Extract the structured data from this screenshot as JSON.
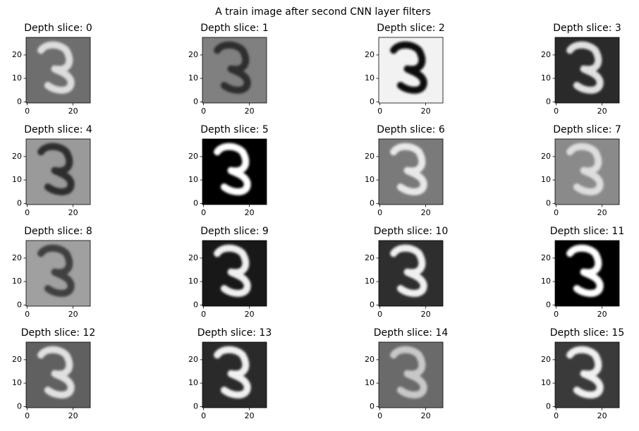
{
  "title": "A train image after second CNN layer filters",
  "chart_data": [
    {
      "type": "image",
      "title": "Depth slice: 0",
      "background": "#6e6e6e",
      "foreground": "#dcdcdc",
      "xlim": [
        -0.5,
        27.5
      ],
      "ylim": [
        27.5,
        -0.5
      ],
      "xticks": [
        0,
        20
      ],
      "yticks": [
        0,
        10,
        20
      ]
    },
    {
      "type": "image",
      "title": "Depth slice: 1",
      "background": "#808080",
      "foreground": "#2e2e2e",
      "xlim": [
        -0.5,
        27.5
      ],
      "ylim": [
        27.5,
        -0.5
      ],
      "xticks": [
        0,
        20
      ],
      "yticks": [
        0,
        10,
        20
      ]
    },
    {
      "type": "image",
      "title": "Depth slice: 2",
      "background": "#f2f2f2",
      "foreground": "#111111",
      "xlim": [
        -0.5,
        27.5
      ],
      "ylim": [
        27.5,
        -0.5
      ],
      "xticks": [
        0,
        20
      ],
      "yticks": [
        0,
        10,
        20
      ]
    },
    {
      "type": "image",
      "title": "Depth slice: 3",
      "background": "#2a2a2a",
      "foreground": "#e0e0e0",
      "xlim": [
        -0.5,
        27.5
      ],
      "ylim": [
        27.5,
        -0.5
      ],
      "xticks": [
        0,
        20
      ],
      "yticks": [
        0,
        10,
        20
      ]
    },
    {
      "type": "image",
      "title": "Depth slice: 4",
      "background": "#9a9a9a",
      "foreground": "#2e2e2e",
      "xlim": [
        -0.5,
        27.5
      ],
      "ylim": [
        27.5,
        -0.5
      ],
      "xticks": [
        0,
        20
      ],
      "yticks": [
        0,
        10,
        20
      ]
    },
    {
      "type": "image",
      "title": "Depth slice: 5",
      "background": "#000000",
      "foreground": "#ffffff",
      "xlim": [
        -0.5,
        27.5
      ],
      "ylim": [
        27.5,
        -0.5
      ],
      "xticks": [
        0,
        20
      ],
      "yticks": [
        0,
        10,
        20
      ]
    },
    {
      "type": "image",
      "title": "Depth slice: 6",
      "background": "#7a7a7a",
      "foreground": "#e8e8e8",
      "xlim": [
        -0.5,
        27.5
      ],
      "ylim": [
        27.5,
        -0.5
      ],
      "xticks": [
        0,
        20
      ],
      "yticks": [
        0,
        10,
        20
      ]
    },
    {
      "type": "image",
      "title": "Depth slice: 7",
      "background": "#8a8a8a",
      "foreground": "#dddddd",
      "xlim": [
        -0.5,
        27.5
      ],
      "ylim": [
        27.5,
        -0.5
      ],
      "xticks": [
        0,
        20
      ],
      "yticks": [
        0,
        10,
        20
      ]
    },
    {
      "type": "image",
      "title": "Depth slice: 8",
      "background": "#a0a0a0",
      "foreground": "#404040",
      "xlim": [
        -0.5,
        27.5
      ],
      "ylim": [
        27.5,
        -0.5
      ],
      "xticks": [
        0,
        20
      ],
      "yticks": [
        0,
        10,
        20
      ]
    },
    {
      "type": "image",
      "title": "Depth slice: 9",
      "background": "#181818",
      "foreground": "#f0f0f0",
      "xlim": [
        -0.5,
        27.5
      ],
      "ylim": [
        27.5,
        -0.5
      ],
      "xticks": [
        0,
        20
      ],
      "yticks": [
        0,
        10,
        20
      ]
    },
    {
      "type": "image",
      "title": "Depth slice: 10",
      "background": "#2e2e2e",
      "foreground": "#f0f0f0",
      "xlim": [
        -0.5,
        27.5
      ],
      "ylim": [
        27.5,
        -0.5
      ],
      "xticks": [
        0,
        20
      ],
      "yticks": [
        0,
        10,
        20
      ]
    },
    {
      "type": "image",
      "title": "Depth slice: 11",
      "background": "#000000",
      "foreground": "#ffffff",
      "xlim": [
        -0.5,
        27.5
      ],
      "ylim": [
        27.5,
        -0.5
      ],
      "xticks": [
        0,
        20
      ],
      "yticks": [
        0,
        10,
        20
      ]
    },
    {
      "type": "image",
      "title": "Depth slice: 12",
      "background": "#606060",
      "foreground": "#e0e0e0",
      "xlim": [
        -0.5,
        27.5
      ],
      "ylim": [
        27.5,
        -0.5
      ],
      "xticks": [
        0,
        20
      ],
      "yticks": [
        0,
        10,
        20
      ]
    },
    {
      "type": "image",
      "title": "Depth slice: 13",
      "background": "#2a2a2a",
      "foreground": "#f0f0f0",
      "xlim": [
        -0.5,
        27.5
      ],
      "ylim": [
        27.5,
        -0.5
      ],
      "xticks": [
        0,
        20
      ],
      "yticks": [
        0,
        10,
        20
      ]
    },
    {
      "type": "image",
      "title": "Depth slice: 14",
      "background": "#6a6a6a",
      "foreground": "#c8c8c8",
      "xlim": [
        -0.5,
        27.5
      ],
      "ylim": [
        27.5,
        -0.5
      ],
      "xticks": [
        0,
        20
      ],
      "yticks": [
        0,
        10,
        20
      ]
    },
    {
      "type": "image",
      "title": "Depth slice: 15",
      "background": "#3a3a3a",
      "foreground": "#f0f0f0",
      "xlim": [
        -0.5,
        27.5
      ],
      "ylim": [
        27.5,
        -0.5
      ],
      "xticks": [
        0,
        20
      ],
      "yticks": [
        0,
        10,
        20
      ]
    }
  ]
}
